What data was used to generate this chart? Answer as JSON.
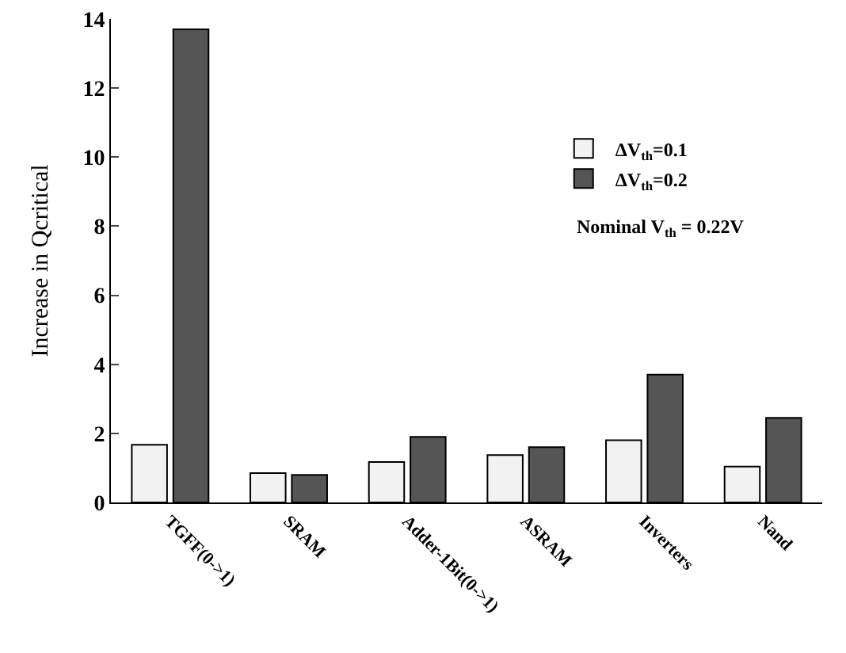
{
  "chart_data": {
    "type": "bar",
    "ylabel": "Increase in Qcritical",
    "categories": [
      "TGFF(0->1)",
      "SRAM",
      "Adder-1Bit(0->1)",
      "ASRAM",
      "Inverters",
      "Nand"
    ],
    "series": [
      {
        "name": "ΔV$_{th}$=0.1",
        "color": "#f2f2f2",
        "values": [
          1.67,
          0.85,
          1.17,
          1.37,
          1.8,
          1.04
        ]
      },
      {
        "name": "ΔV$_{th}$=0.2",
        "color": "#555555",
        "values": [
          13.7,
          0.8,
          1.9,
          1.6,
          3.7,
          2.45
        ]
      }
    ],
    "ylim": [
      0,
      14
    ],
    "yticks": [
      0,
      2,
      4,
      6,
      8,
      10,
      12,
      14
    ],
    "grid": false,
    "legend": "top right",
    "annotations": [
      "Nominal V$_{th}$ = 0.22V"
    ]
  }
}
